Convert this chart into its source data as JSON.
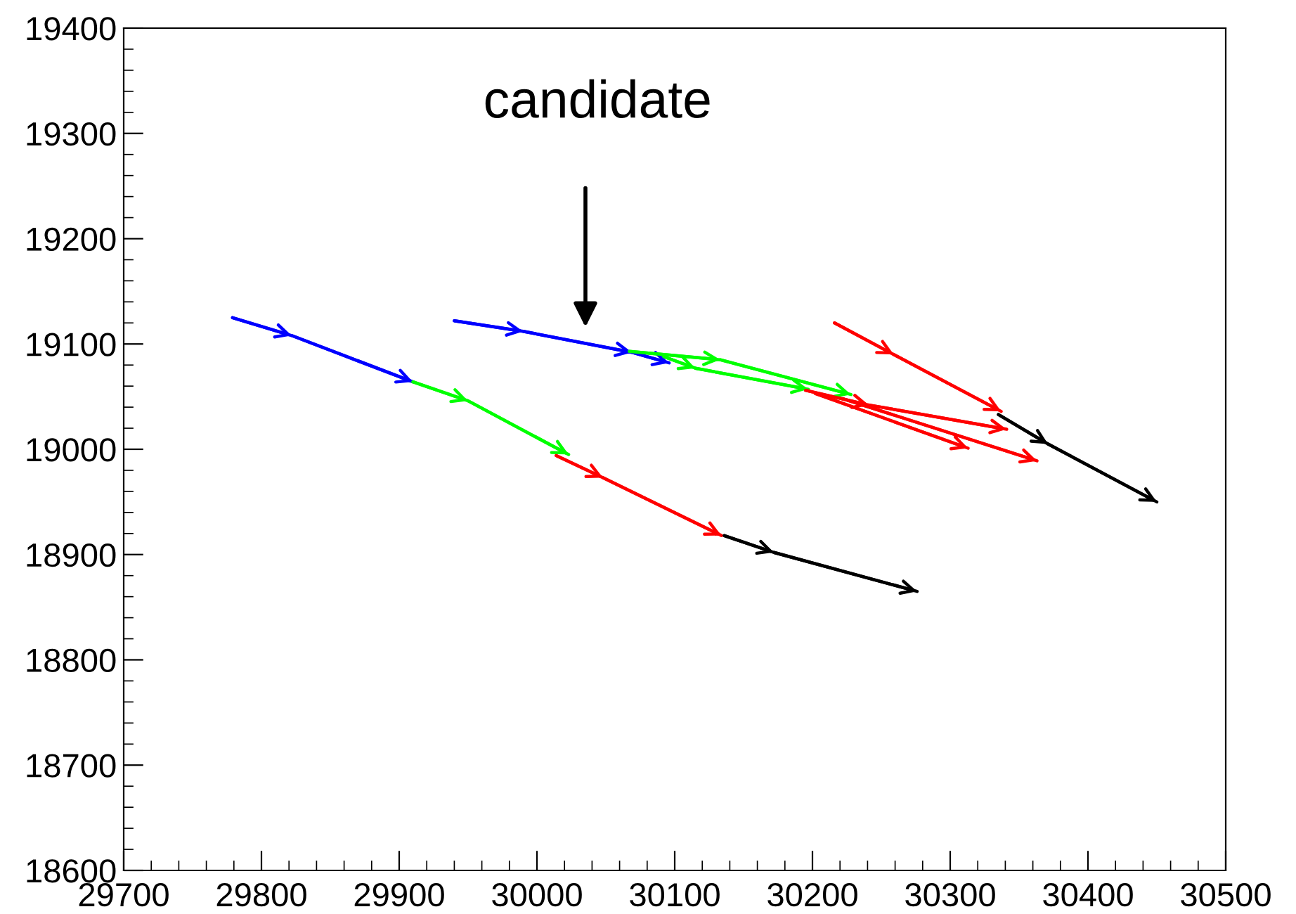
{
  "chart_data": {
    "type": "line",
    "xlim": [
      29700,
      30500
    ],
    "xticks": [
      29700,
      29800,
      29900,
      30000,
      30100,
      30200,
      30300,
      30400,
      30500
    ],
    "ylim": [
      18600,
      19400
    ],
    "yticks": [
      18600,
      18700,
      18800,
      18900,
      19000,
      19100,
      19200,
      19300,
      19400
    ],
    "grid": false,
    "annotations": [
      "candidate"
    ],
    "series": [
      {
        "color": "#0000ff",
        "x": [
          29779,
          29822,
          29910
        ],
        "values": [
          19125,
          19108,
          19064
        ]
      },
      {
        "color": "#00ff00",
        "x": [
          29910,
          29950,
          30023
        ],
        "values": [
          19064,
          19046,
          18995
        ]
      },
      {
        "color": "#ff0000",
        "x": [
          30014,
          30048,
          30134
        ],
        "values": [
          18994,
          18973,
          18918
        ]
      },
      {
        "color": "#000000",
        "x": [
          30136,
          30172,
          30276
        ],
        "values": [
          18918,
          18902,
          18865
        ]
      },
      {
        "color": "#0000ff",
        "x": [
          29940,
          29990,
          30069,
          30096
        ],
        "values": [
          19122,
          19112,
          19092,
          19082
        ]
      },
      {
        "color": "#00ff00",
        "x": [
          30067,
          30133,
          30228
        ],
        "values": [
          19093,
          19085,
          19052
        ]
      },
      {
        "color": "#00ff00",
        "x": [
          30092,
          30115,
          30197
        ],
        "values": [
          19088,
          19077,
          19057
        ]
      },
      {
        "color": "#ff0000",
        "x": [
          30216,
          30259,
          30337
        ],
        "values": [
          19120,
          19090,
          19036
        ]
      },
      {
        "color": "#ff0000",
        "x": [
          30195,
          30241,
          30341
        ],
        "values": [
          19056,
          19042,
          19019
        ]
      },
      {
        "color": "#ff0000",
        "x": [
          30202,
          30313
        ],
        "values": [
          19053,
          19001
        ]
      },
      {
        "color": "#ff0000",
        "x": [
          30222,
          30363
        ],
        "values": [
          19048,
          18989
        ]
      },
      {
        "color": "#000000",
        "x": [
          30335,
          30371,
          30450
        ],
        "values": [
          19033,
          19005,
          18950
        ]
      }
    ]
  }
}
